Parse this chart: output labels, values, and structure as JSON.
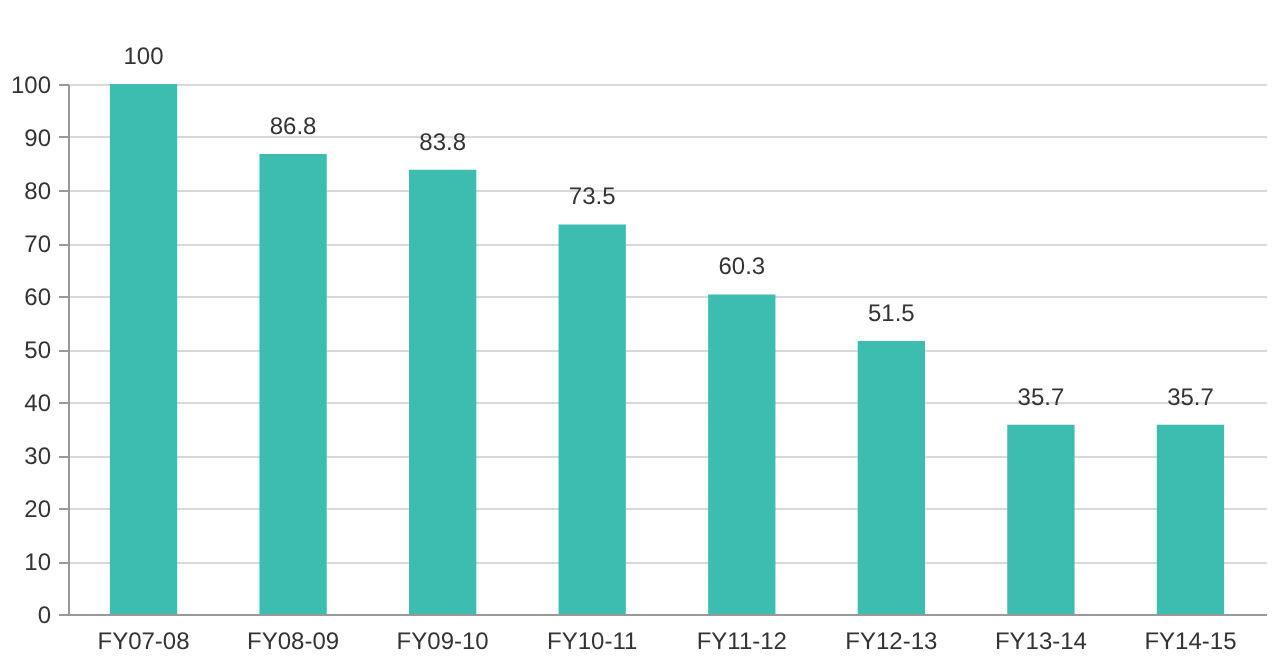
{
  "chart_data": {
    "type": "bar",
    "categories": [
      "FY07-08",
      "FY08-09",
      "FY09-10",
      "FY10-11",
      "FY11-12",
      "FY12-13",
      "FY13-14",
      "FY14-15"
    ],
    "values": [
      100,
      86.8,
      83.8,
      73.5,
      60.3,
      51.5,
      35.7,
      35.7
    ],
    "color": "#3dbdb0",
    "ylim": [
      0,
      100
    ],
    "yticks": [
      0,
      10,
      20,
      30,
      40,
      50,
      60,
      70,
      80,
      90,
      100
    ],
    "grid": "y",
    "data_labels": true
  }
}
